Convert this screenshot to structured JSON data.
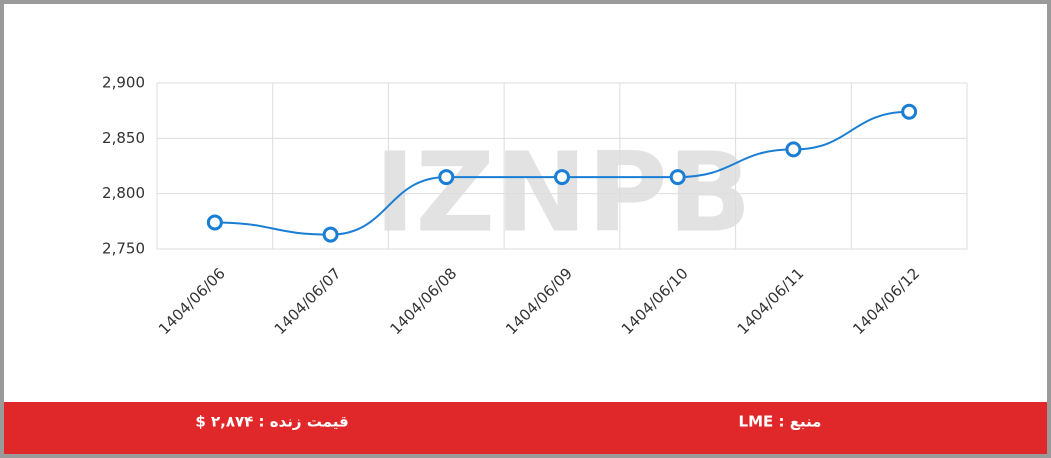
{
  "chart_data": {
    "type": "line",
    "categories": [
      "1404/06/06",
      "1404/06/07",
      "1404/06/08",
      "1404/06/09",
      "1404/06/10",
      "1404/06/11",
      "1404/06/12"
    ],
    "series": [
      {
        "color": "#1a7fd4",
        "values": [
          2774,
          2763,
          2815,
          2815,
          2815,
          2840,
          2874
        ]
      }
    ],
    "ylim": [
      2750,
      2900
    ],
    "yticks": [
      {
        "value": 2750,
        "label": "2,750"
      },
      {
        "value": 2800,
        "label": "2,800"
      },
      {
        "value": 2850,
        "label": "2,850"
      },
      {
        "value": 2900,
        "label": "2,900"
      }
    ],
    "grid": true,
    "watermark": "IZNPB"
  },
  "footer": {
    "price": "قیمت زنده : ۲,۸۷۴ $",
    "source": "منبع : LME"
  }
}
